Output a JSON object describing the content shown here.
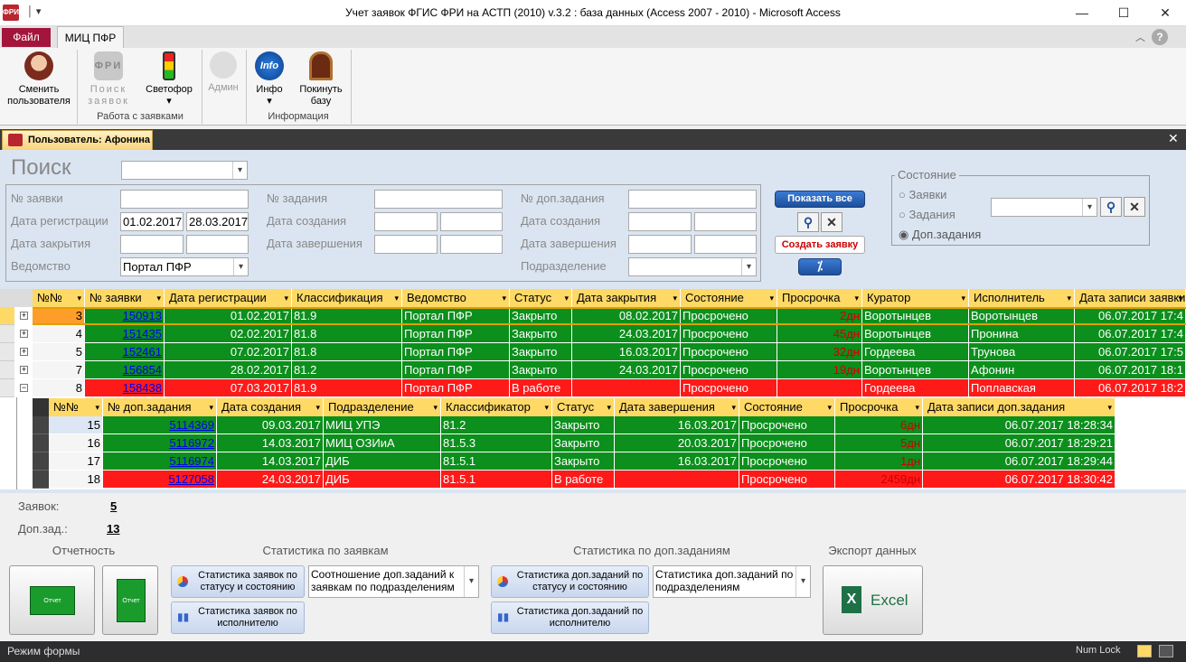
{
  "window": {
    "title": "Учет заявок ФГИС ФРИ на АСТП (2010) v.3.2 : база данных (Access 2007 - 2010)  -  Microsoft Access",
    "minimize": "—",
    "maximize": "☐",
    "close": "✕"
  },
  "ribbon": {
    "tabs": [
      {
        "label": "Файл"
      },
      {
        "label": "МИЦ ПФР"
      }
    ],
    "buttons": [
      {
        "label": "Сменить пользователя"
      },
      {
        "label": "Поиск заявок"
      },
      {
        "label": "Светофор"
      },
      {
        "label": "Админ"
      },
      {
        "label": "Инфо"
      },
      {
        "label": "Покинуть базу"
      }
    ],
    "groups": [
      "Работа с заявками",
      "Информация"
    ]
  },
  "doc_tab": {
    "label": "Пользователь: Афонина"
  },
  "search": {
    "title": "Поиск",
    "col1": {
      "labels": [
        "№ заявки",
        "Дата регистрации",
        "Дата закрытия",
        "Ведомство"
      ],
      "date_from": "01.02.2017",
      "date_to": "28.03.2017",
      "vedomstvo": "Портал ПФР"
    },
    "col2": {
      "labels": [
        "№ задания",
        "Дата создания",
        "Дата завершения"
      ]
    },
    "col3": {
      "labels": [
        "№ доп.задания",
        "Дата создания",
        "Дата завершения",
        "Подразделение"
      ]
    },
    "show_all": "Показать все",
    "create": "Создать заявку",
    "state_group": {
      "title": "Состояние",
      "options": [
        "Заявки",
        "Задания",
        "Доп.задания"
      ],
      "selected": 2
    }
  },
  "grid": {
    "headers": [
      "№№",
      "№ заявки",
      "Дата регистрации",
      "Классификация",
      "Ведомство",
      "Статус",
      "Дата закрытия",
      "Состояние",
      "Просрочка",
      "Куратор",
      "Исполнитель",
      "Дата записи заявки"
    ],
    "rows": [
      {
        "n": "3",
        "id": "150913",
        "reg": "01.02.2017",
        "cls": "81.9",
        "ved": "Портал ПФР",
        "status": "Закрыто",
        "closed": "08.02.2017",
        "state": "Просрочено",
        "over": "2дн",
        "cur": "Воротынцев",
        "exec": "Воротынцев",
        "rec": "06.07.2017 17:4",
        "color": "g",
        "expand": "+"
      },
      {
        "n": "4",
        "id": "151435",
        "reg": "02.02.2017",
        "cls": "81.8",
        "ved": "Портал ПФР",
        "status": "Закрыто",
        "closed": "24.03.2017",
        "state": "Просрочено",
        "over": "45дн",
        "cur": "Воротынцев",
        "exec": "Пронина",
        "rec": "06.07.2017 17:4",
        "color": "g",
        "expand": "+"
      },
      {
        "n": "5",
        "id": "152461",
        "reg": "07.02.2017",
        "cls": "81.8",
        "ved": "Портал ПФР",
        "status": "Закрыто",
        "closed": "16.03.2017",
        "state": "Просрочено",
        "over": "32дн",
        "cur": "Гордеева",
        "exec": "Трунова",
        "rec": "06.07.2017 17:5",
        "color": "g",
        "expand": "+"
      },
      {
        "n": "7",
        "id": "156854",
        "reg": "28.02.2017",
        "cls": "81.2",
        "ved": "Портал ПФР",
        "status": "Закрыто",
        "closed": "24.03.2017",
        "state": "Просрочено",
        "over": "19дн",
        "cur": "Воротынцев",
        "exec": "Афонин",
        "rec": "06.07.2017 18:1",
        "color": "g",
        "expand": "+"
      },
      {
        "n": "8",
        "id": "158438",
        "reg": "07.03.2017",
        "cls": "81.9",
        "ved": "Портал ПФР",
        "status": "В работе",
        "closed": "",
        "state": "Просрочено",
        "over": "",
        "cur": "Гордеева",
        "exec": "Поплавская",
        "rec": "06.07.2017 18:2",
        "color": "r",
        "expand": "−"
      }
    ]
  },
  "subgrid": {
    "headers": [
      "№№",
      "№ доп.задания",
      "Дата создания",
      "Подразделение",
      "Классификатор",
      "Статус",
      "Дата завершения",
      "Состояние",
      "Просрочка",
      "Дата записи доп.задания"
    ],
    "rows": [
      {
        "n": "15",
        "id": "5114369",
        "created": "09.03.2017",
        "dept": "МИЦ УПЭ",
        "cls": "81.2",
        "status": "Закрыто",
        "done": "16.03.2017",
        "state": "Просрочено",
        "over": "6дн",
        "rec": "06.07.2017 18:28:34",
        "color": "g"
      },
      {
        "n": "16",
        "id": "5116972",
        "created": "14.03.2017",
        "dept": "МИЦ ОЗИиА",
        "cls": "81.5.3",
        "status": "Закрыто",
        "done": "20.03.2017",
        "state": "Просрочено",
        "over": "5дн",
        "rec": "06.07.2017 18:29:21",
        "color": "g"
      },
      {
        "n": "17",
        "id": "5116974",
        "created": "14.03.2017",
        "dept": "ДИБ",
        "cls": "81.5.1",
        "status": "Закрыто",
        "done": "16.03.2017",
        "state": "Просрочено",
        "over": "1дн",
        "rec": "06.07.2017 18:29:44",
        "color": "g"
      },
      {
        "n": "18",
        "id": "5127058",
        "created": "24.03.2017",
        "dept": "ДИБ",
        "cls": "81.5.1",
        "status": "В работе",
        "done": "",
        "state": "Просрочено",
        "over": "2459дн",
        "rec": "06.07.2017 18:30:42",
        "color": "r"
      }
    ]
  },
  "counts": {
    "zayavok_label": "Заявок:",
    "zayavok": "5",
    "dopzad_label": "Доп.зад.:",
    "dopzad": "13"
  },
  "sections": {
    "report": "Отчетность",
    "stat_z": "Статистика по заявкам",
    "stat_d": "Статистика по доп.заданиям",
    "export": "Экспорт данных"
  },
  "stat_buttons": {
    "z1": "Статистика заявок по статусу и состоянию",
    "z2": "Статистика заявок по исполнителю",
    "z_combo": "Соотношение доп.заданий к заявкам по подразделениям",
    "d1": "Статистика доп.заданий по статусу и состоянию",
    "d2": "Статистика доп.заданий по исполнителю",
    "d_combo": "Статистика доп.заданий по подразделениям"
  },
  "excel": "Excel",
  "report_label": "Отчет",
  "status": {
    "mode": "Режим формы",
    "numlock": "Num Lock"
  },
  "colors": {
    "green": "#0c8f1c",
    "red": "#ff1a1a",
    "header": "#ffd966",
    "form_bg": "#dbe5f1",
    "file_tab": "#a4153c"
  }
}
